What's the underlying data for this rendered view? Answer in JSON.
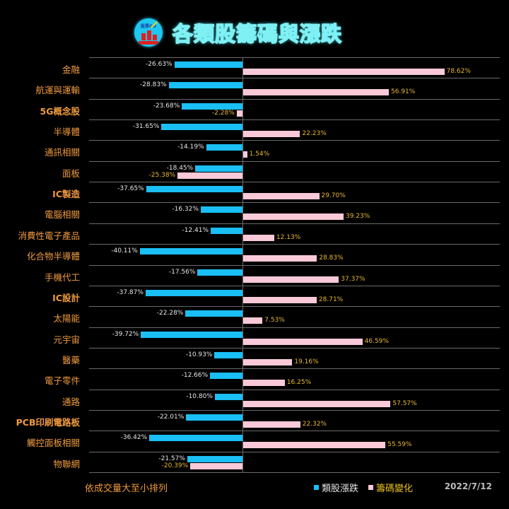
{
  "header": {
    "title": "各類股籌碼與漲跌",
    "logo_text": "股票GO"
  },
  "footer": {
    "note": "依成交量大至小排列",
    "date": "2022/7/12"
  },
  "legend": [
    {
      "label": "類股漲跌",
      "color": "#19bff5",
      "text_color": "#e6e6e6"
    },
    {
      "label": "籌碼變化",
      "color": "#f9c9d8",
      "text_color": "#e8c020"
    }
  ],
  "colors": {
    "sector_change": "#19bff5",
    "chip_change": "#f9c9d8",
    "category_text": "#f09a3e",
    "value_text_pink": "#e8b830",
    "background": "#000000"
  },
  "chart_data": {
    "type": "bar",
    "orientation": "horizontal",
    "title": "各類股籌碼與漲跌",
    "xlabel": "",
    "ylabel": "",
    "legend_position": "bottom",
    "grid": true,
    "categories": [
      "金融",
      "航運與運輸",
      "5G概念股",
      "半導體",
      "通訊相關",
      "面板",
      "IC製造",
      "電腦相關",
      "消費性電子產品",
      "化合物半導體",
      "手機代工",
      "IC設計",
      "太陽能",
      "元宇宙",
      "醫藥",
      "電子零件",
      "通路",
      "PCB印刷電路板",
      "觸控面板相關",
      "物聯網"
    ],
    "series": [
      {
        "name": "類股漲跌",
        "values": [
          -26.63,
          -28.83,
          -23.68,
          -31.65,
          -14.19,
          -18.45,
          -37.65,
          -16.32,
          -12.41,
          -40.11,
          -17.56,
          -37.87,
          -22.28,
          -39.72,
          -10.93,
          -12.66,
          -10.8,
          -22.01,
          -36.42,
          -21.57
        ]
      },
      {
        "name": "籌碼變化",
        "values": [
          78.62,
          56.91,
          -2.28,
          22.23,
          1.54,
          -25.38,
          29.7,
          39.23,
          12.13,
          28.83,
          37.37,
          28.71,
          7.53,
          46.59,
          19.16,
          16.25,
          57.57,
          22.32,
          55.59,
          -20.39
        ]
      }
    ],
    "labels": {
      "類股漲跌": [
        "-26.63%",
        "-28.83%",
        "-23.68%",
        "-31.65%",
        "-14.19%",
        "-18.45%",
        "-37.65%",
        "-16.32%",
        "-12.41%",
        "-40.11%",
        "-17.56%",
        "-37.87%",
        "-22.28%",
        "-39.72%",
        "-10.93%",
        "-12.66%",
        "-10.80%",
        "-22.01%",
        "-36.42%",
        "-21.57%"
      ],
      "籌碼變化": [
        "78.62%",
        "56.91%",
        "-2.28%",
        "22.23%",
        "1.54%",
        "-25.38%",
        "29.70%",
        "39.23%",
        "12.13%",
        "28.83%",
        "37.37%",
        "28.71%",
        "7.53%",
        "46.59%",
        "19.16%",
        "16.25%",
        "57.57%",
        "22.32%",
        "55.59%",
        "-20.39%"
      ]
    },
    "bold_categories": [
      "5G概念股",
      "IC製造",
      "IC設計",
      "PCB印刷電路板"
    ],
    "note": "依成交量大至小排列",
    "date": "2022/7/12"
  }
}
